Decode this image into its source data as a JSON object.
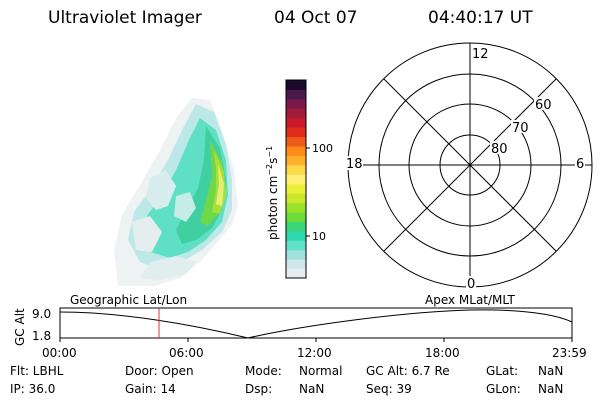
{
  "header": {
    "title": "Ultraviolet Imager",
    "date": "04 Oct 07",
    "time": "04:40:17 UT"
  },
  "colorbar": {
    "unit_label": "photon cm",
    "unit_sup1": "−2",
    "unit_mid": "s",
    "unit_sup2": "−1",
    "ticks": [
      "100",
      "10"
    ],
    "colors": [
      "#e8eef0",
      "#d0e8ec",
      "#9fe2dc",
      "#5fe2c8",
      "#2fd8b0",
      "#3fd67a",
      "#6bdc3a",
      "#9be22a",
      "#cbe82a",
      "#eaf03a",
      "#fff07a",
      "#ffd84a",
      "#ffb02a",
      "#ff8a1a",
      "#f05a1a",
      "#e02a1a",
      "#c81a2a",
      "#a01a3a",
      "#7a1a4a",
      "#4a1a4a",
      "#1a0a2a"
    ]
  },
  "polar_plot": {
    "labels": {
      "top": "12",
      "bottom": "0",
      "left": "18",
      "right": "6",
      "ring60": "60",
      "ring70": "70",
      "ring80": "80"
    }
  },
  "timeline": {
    "title_left": "Geographic Lat/Lon",
    "title_right": "Apex  MLat/MLT",
    "ylabel": "GC Alt",
    "ytick_top": "9.0",
    "ytick_bottom": "1.8",
    "xticks": [
      "00:00",
      "06:00",
      "12:00",
      "18:00",
      "23:59"
    ],
    "current_marker_color": "#e03030"
  },
  "status": {
    "row1": {
      "flt": "Flt: LBHL",
      "door": "Door: Open",
      "mode_label": "Mode:",
      "mode_value": "Normal",
      "gcalt": "GC Alt: 6.7 Re",
      "glat_label": "GLat:",
      "glat_value": "NaN"
    },
    "row2": {
      "ip": "IP: 36.0",
      "gain": "Gain: 14",
      "dsp_label": "Dsp:",
      "dsp_value": "NaN",
      "seq": "Seq: 39",
      "glon_label": "GLon:",
      "glon_value": "NaN"
    }
  }
}
